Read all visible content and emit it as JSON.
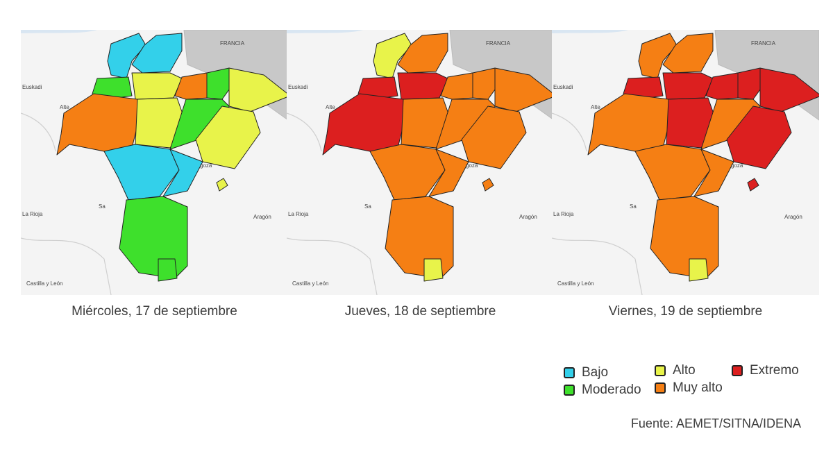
{
  "colors": {
    "bajo": "#33d0ea",
    "moderado": "#3ee02c",
    "alto": "#e8f34a",
    "muy_alto": "#f57f14",
    "extremo": "#dc1f1f",
    "france": "#c8c8c8",
    "surround": "#f4f4f4",
    "sea": "#d9e6f2",
    "border": "#222222"
  },
  "map_labels": {
    "francia": "FRANCIA",
    "euskadi": "Euskadi",
    "la_rioja": "La Rioja",
    "aragon": "Aragón",
    "castilla": "Castilla y León",
    "alte": "Alte",
    "goza": "goza",
    "sa": "Sa"
  },
  "maps": [
    {
      "caption": "Miércoles, 17 de septiembre",
      "zones": [
        "bajo",
        "bajo",
        "moderado",
        "alto",
        "muy_alto",
        "moderado",
        "alto",
        "muy_alto",
        "alto",
        "moderado",
        "alto",
        "bajo",
        "bajo",
        "moderado",
        "moderado"
      ]
    },
    {
      "caption": "Jueves, 18 de septiembre",
      "zones": [
        "alto",
        "muy_alto",
        "extremo",
        "extremo",
        "muy_alto",
        "muy_alto",
        "muy_alto",
        "extremo",
        "muy_alto",
        "muy_alto",
        "muy_alto",
        "muy_alto",
        "muy_alto",
        "muy_alto",
        "alto"
      ]
    },
    {
      "caption": "Viernes, 19 de septiembre",
      "zones": [
        "muy_alto",
        "muy_alto",
        "extremo",
        "extremo",
        "extremo",
        "extremo",
        "extremo",
        "muy_alto",
        "extremo",
        "muy_alto",
        "extremo",
        "muy_alto",
        "muy_alto",
        "muy_alto",
        "alto"
      ]
    }
  ],
  "legend": [
    {
      "key": "bajo",
      "label": "Bajo"
    },
    {
      "key": "moderado",
      "label": "Moderado"
    },
    {
      "key": "alto",
      "label": "Alto"
    },
    {
      "key": "muy_alto",
      "label": "Muy alto"
    },
    {
      "key": "extremo",
      "label": "Extremo"
    }
  ],
  "source": "Fuente: AEMET/SITNA/IDENA"
}
